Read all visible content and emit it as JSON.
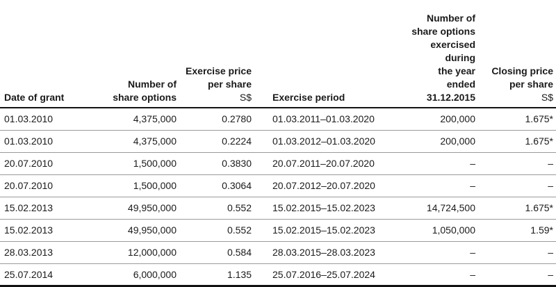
{
  "table": {
    "headers": {
      "date_of_grant": [
        "Date of grant"
      ],
      "number_of_options": [
        "Number of",
        "share options"
      ],
      "exercise_price": [
        "Exercise price",
        "per share"
      ],
      "exercise_price_unit": "S$",
      "exercise_period": [
        "Exercise period"
      ],
      "exercised": [
        "Number of",
        "share options",
        "exercised",
        "during",
        "the year",
        "ended",
        "31.12.2015"
      ],
      "closing_price": [
        "Closing price",
        "per share"
      ],
      "closing_price_unit": "S$"
    },
    "rows": [
      {
        "date": "01.03.2010",
        "options": "4,375,000",
        "price": "0.2780",
        "period": "01.03.2011–01.03.2020",
        "exercised": "200,000",
        "closing": "1.675*"
      },
      {
        "date": "01.03.2010",
        "options": "4,375,000",
        "price": "0.2224",
        "period": "01.03.2012–01.03.2020",
        "exercised": "200,000",
        "closing": "1.675*"
      },
      {
        "date": "20.07.2010",
        "options": "1,500,000",
        "price": "0.3830",
        "period": "20.07.2011–20.07.2020",
        "exercised": "–",
        "closing": "–"
      },
      {
        "date": "20.07.2010",
        "options": "1,500,000",
        "price": "0.3064",
        "period": "20.07.2012–20.07.2020",
        "exercised": "–",
        "closing": "–"
      },
      {
        "date": "15.02.2013",
        "options": "49,950,000",
        "price": "0.552",
        "period": "15.02.2015–15.02.2023",
        "exercised": "14,724,500",
        "closing": "1.675*"
      },
      {
        "date": "15.02.2013",
        "options": "49,950,000",
        "price": "0.552",
        "period": "15.02.2015–15.02.2023",
        "exercised": "1,050,000",
        "closing": "1.59*"
      },
      {
        "date": "28.03.2013",
        "options": "12,000,000",
        "price": "0.584",
        "period": "28.03.2015–28.03.2023",
        "exercised": "–",
        "closing": "–"
      },
      {
        "date": "25.07.2014",
        "options": "6,000,000",
        "price": "1.135",
        "period": "25.07.2016–25.07.2024",
        "exercised": "–",
        "closing": "–"
      }
    ]
  }
}
